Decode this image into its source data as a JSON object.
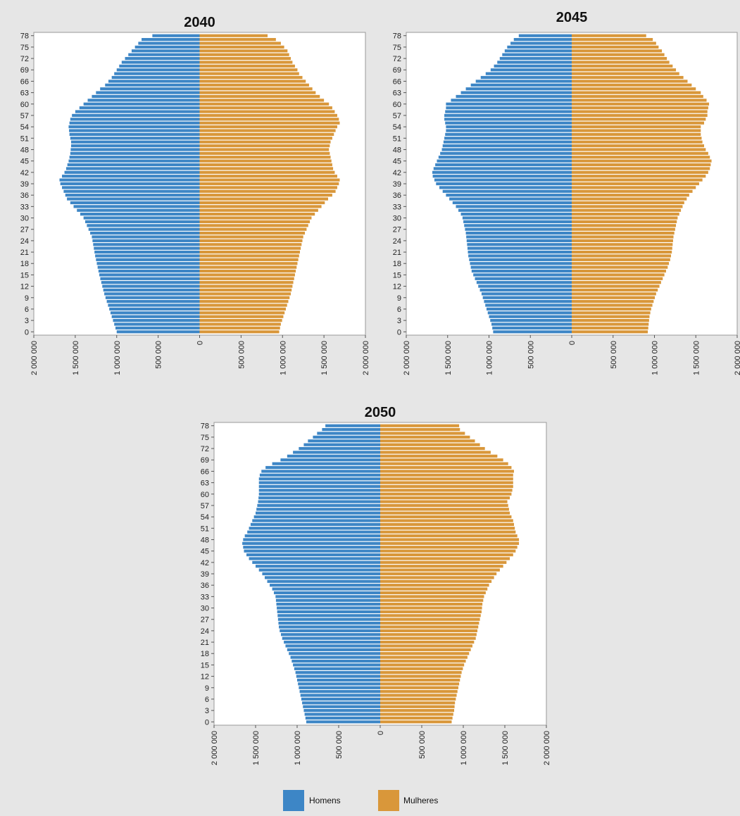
{
  "legend": {
    "male_label": "Homens",
    "female_label": "Mulheres",
    "male_color": "#3d86c6",
    "female_color": "#d9973a"
  },
  "chart_data": [
    {
      "type": "bar",
      "orientation": "horizontal-population-pyramid",
      "title": "2040",
      "age_tick_labels": [
        "0",
        "3",
        "6",
        "9",
        "12",
        "15",
        "18",
        "21",
        "24",
        "27",
        "30",
        "33",
        "36",
        "39",
        "42",
        "45",
        "48",
        "51",
        "54",
        "57",
        "60",
        "63",
        "66",
        "69",
        "72",
        "75",
        "78"
      ],
      "x_tick_labels": [
        "2 000 000",
        "1 500 000",
        "1 000 000",
        "500 000",
        "0",
        "500 000",
        "1 000 000",
        "1 500 000",
        "2 000 000"
      ],
      "xlim": [
        -2000000,
        2000000
      ],
      "ages": [
        0,
        1,
        2,
        3,
        4,
        5,
        6,
        7,
        8,
        9,
        10,
        11,
        12,
        13,
        14,
        15,
        16,
        17,
        18,
        19,
        20,
        21,
        22,
        23,
        24,
        25,
        26,
        27,
        28,
        29,
        30,
        31,
        32,
        33,
        34,
        35,
        36,
        37,
        38,
        39,
        40,
        41,
        42,
        43,
        44,
        45,
        46,
        47,
        48,
        49,
        50,
        51,
        52,
        53,
        54,
        55,
        56,
        57,
        58,
        59,
        60,
        61,
        62,
        63,
        64,
        65,
        66,
        67,
        68,
        69,
        70,
        71,
        72,
        73,
        74,
        75,
        76,
        77,
        78
      ],
      "series": [
        {
          "name": "Homens",
          "values": [
            1000000,
            1015000,
            1030000,
            1045000,
            1060000,
            1075000,
            1090000,
            1105000,
            1120000,
            1135000,
            1150000,
            1162000,
            1174000,
            1186000,
            1198000,
            1210000,
            1220000,
            1230000,
            1240000,
            1250000,
            1260000,
            1268000,
            1276000,
            1284000,
            1292000,
            1300000,
            1320000,
            1340000,
            1360000,
            1380000,
            1400000,
            1440000,
            1480000,
            1520000,
            1560000,
            1600000,
            1620000,
            1640000,
            1660000,
            1680000,
            1690000,
            1660000,
            1630000,
            1610000,
            1595000,
            1580000,
            1570000,
            1560000,
            1555000,
            1550000,
            1550000,
            1560000,
            1570000,
            1575000,
            1580000,
            1570000,
            1560000,
            1540000,
            1500000,
            1450000,
            1400000,
            1350000,
            1300000,
            1250000,
            1200000,
            1140000,
            1100000,
            1060000,
            1030000,
            1000000,
            970000,
            940000,
            900000,
            860000,
            820000,
            780000,
            740000,
            700000,
            570000
          ]
        },
        {
          "name": "Mulheres",
          "values": [
            960000,
            970000,
            980000,
            995000,
            1010000,
            1025000,
            1040000,
            1055000,
            1070000,
            1085000,
            1100000,
            1110000,
            1120000,
            1130000,
            1140000,
            1150000,
            1160000,
            1170000,
            1180000,
            1190000,
            1200000,
            1210000,
            1220000,
            1230000,
            1240000,
            1250000,
            1270000,
            1290000,
            1310000,
            1330000,
            1350000,
            1390000,
            1430000,
            1470000,
            1510000,
            1550000,
            1600000,
            1640000,
            1660000,
            1680000,
            1690000,
            1660000,
            1630000,
            1610000,
            1600000,
            1590000,
            1580000,
            1570000,
            1560000,
            1570000,
            1580000,
            1600000,
            1620000,
            1640000,
            1660000,
            1690000,
            1680000,
            1660000,
            1630000,
            1600000,
            1560000,
            1500000,
            1450000,
            1400000,
            1360000,
            1320000,
            1280000,
            1240000,
            1200000,
            1180000,
            1150000,
            1120000,
            1100000,
            1080000,
            1060000,
            1020000,
            980000,
            920000,
            820000
          ]
        }
      ]
    },
    {
      "type": "bar",
      "orientation": "horizontal-population-pyramid",
      "title": "2045",
      "age_tick_labels": [
        "0",
        "3",
        "6",
        "9",
        "12",
        "15",
        "18",
        "21",
        "24",
        "27",
        "30",
        "33",
        "36",
        "39",
        "42",
        "45",
        "48",
        "51",
        "54",
        "57",
        "60",
        "63",
        "66",
        "69",
        "72",
        "75",
        "78"
      ],
      "x_tick_labels": [
        "2 000 000",
        "1 500 000",
        "1 000 000",
        "500 000",
        "0",
        "500 000",
        "1 000 000",
        "1 500 000",
        "2 000 000"
      ],
      "xlim": [
        -2000000,
        2000000
      ],
      "ages": [
        0,
        1,
        2,
        3,
        4,
        5,
        6,
        7,
        8,
        9,
        10,
        11,
        12,
        13,
        14,
        15,
        16,
        17,
        18,
        19,
        20,
        21,
        22,
        23,
        24,
        25,
        26,
        27,
        28,
        29,
        30,
        31,
        32,
        33,
        34,
        35,
        36,
        37,
        38,
        39,
        40,
        41,
        42,
        43,
        44,
        45,
        46,
        47,
        48,
        49,
        50,
        51,
        52,
        53,
        54,
        55,
        56,
        57,
        58,
        59,
        60,
        61,
        62,
        63,
        64,
        65,
        66,
        67,
        68,
        69,
        70,
        71,
        72,
        73,
        74,
        75,
        76,
        77,
        78
      ],
      "series": [
        {
          "name": "Homens",
          "values": [
            950000,
            960000,
            970000,
            985000,
            1000000,
            1015000,
            1030000,
            1045000,
            1060000,
            1075000,
            1090000,
            1110000,
            1130000,
            1150000,
            1170000,
            1190000,
            1210000,
            1220000,
            1230000,
            1240000,
            1250000,
            1255000,
            1260000,
            1265000,
            1270000,
            1275000,
            1280000,
            1290000,
            1300000,
            1310000,
            1320000,
            1340000,
            1370000,
            1400000,
            1440000,
            1480000,
            1520000,
            1560000,
            1600000,
            1640000,
            1660000,
            1680000,
            1685000,
            1670000,
            1650000,
            1630000,
            1610000,
            1590000,
            1570000,
            1560000,
            1550000,
            1540000,
            1530000,
            1520000,
            1520000,
            1530000,
            1540000,
            1540000,
            1530000,
            1520000,
            1520000,
            1460000,
            1400000,
            1340000,
            1280000,
            1220000,
            1160000,
            1100000,
            1040000,
            980000,
            940000,
            900000,
            870000,
            840000,
            810000,
            780000,
            740000,
            700000,
            640000
          ]
        },
        {
          "name": "Mulheres",
          "values": [
            920000,
            925000,
            930000,
            935000,
            940000,
            950000,
            960000,
            975000,
            990000,
            1005000,
            1020000,
            1040000,
            1060000,
            1080000,
            1100000,
            1120000,
            1140000,
            1160000,
            1175000,
            1190000,
            1200000,
            1210000,
            1215000,
            1220000,
            1225000,
            1230000,
            1240000,
            1250000,
            1260000,
            1270000,
            1280000,
            1300000,
            1320000,
            1340000,
            1360000,
            1390000,
            1420000,
            1460000,
            1500000,
            1540000,
            1580000,
            1620000,
            1650000,
            1670000,
            1680000,
            1690000,
            1670000,
            1650000,
            1620000,
            1600000,
            1580000,
            1570000,
            1560000,
            1560000,
            1560000,
            1600000,
            1620000,
            1640000,
            1640000,
            1650000,
            1660000,
            1630000,
            1590000,
            1560000,
            1500000,
            1450000,
            1400000,
            1350000,
            1300000,
            1260000,
            1220000,
            1180000,
            1150000,
            1120000,
            1090000,
            1050000,
            1020000,
            980000,
            900000
          ]
        }
      ]
    },
    {
      "type": "bar",
      "orientation": "horizontal-population-pyramid",
      "title": "2050",
      "age_tick_labels": [
        "0",
        "3",
        "6",
        "9",
        "12",
        "15",
        "18",
        "21",
        "24",
        "27",
        "30",
        "33",
        "36",
        "39",
        "42",
        "45",
        "48",
        "51",
        "54",
        "57",
        "60",
        "63",
        "66",
        "69",
        "72",
        "75",
        "78"
      ],
      "x_tick_labels": [
        "2 000 000",
        "1 500 000",
        "1 000 000",
        "500 000",
        "0",
        "500 000",
        "1 000 000",
        "1 500 000",
        "2 000 000"
      ],
      "xlim": [
        -2000000,
        2000000
      ],
      "ages": [
        0,
        1,
        2,
        3,
        4,
        5,
        6,
        7,
        8,
        9,
        10,
        11,
        12,
        13,
        14,
        15,
        16,
        17,
        18,
        19,
        20,
        21,
        22,
        23,
        24,
        25,
        26,
        27,
        28,
        29,
        30,
        31,
        32,
        33,
        34,
        35,
        36,
        37,
        38,
        39,
        40,
        41,
        42,
        43,
        44,
        45,
        46,
        47,
        48,
        49,
        50,
        51,
        52,
        53,
        54,
        55,
        56,
        57,
        58,
        59,
        60,
        61,
        62,
        63,
        64,
        65,
        66,
        67,
        68,
        69,
        70,
        71,
        72,
        73,
        74,
        75,
        76,
        77,
        78
      ],
      "series": [
        {
          "name": "Homens",
          "values": [
            890000,
            900000,
            910000,
            920000,
            930000,
            940000,
            950000,
            960000,
            970000,
            980000,
            990000,
            1000000,
            1010000,
            1020000,
            1035000,
            1050000,
            1065000,
            1080000,
            1100000,
            1120000,
            1140000,
            1160000,
            1180000,
            1195000,
            1210000,
            1220000,
            1225000,
            1230000,
            1235000,
            1240000,
            1245000,
            1250000,
            1255000,
            1260000,
            1280000,
            1300000,
            1330000,
            1360000,
            1390000,
            1420000,
            1460000,
            1500000,
            1540000,
            1580000,
            1610000,
            1640000,
            1650000,
            1660000,
            1650000,
            1630000,
            1600000,
            1580000,
            1560000,
            1540000,
            1520000,
            1500000,
            1490000,
            1480000,
            1470000,
            1465000,
            1460000,
            1460000,
            1460000,
            1460000,
            1460000,
            1450000,
            1430000,
            1380000,
            1300000,
            1200000,
            1120000,
            1050000,
            980000,
            920000,
            870000,
            810000,
            760000,
            700000,
            660000
          ]
        },
        {
          "name": "Mulheres",
          "values": [
            860000,
            870000,
            880000,
            890000,
            895000,
            900000,
            910000,
            920000,
            930000,
            940000,
            950000,
            960000,
            970000,
            980000,
            995000,
            1010000,
            1030000,
            1050000,
            1070000,
            1090000,
            1110000,
            1130000,
            1150000,
            1160000,
            1170000,
            1180000,
            1190000,
            1200000,
            1210000,
            1220000,
            1225000,
            1230000,
            1240000,
            1250000,
            1270000,
            1290000,
            1310000,
            1340000,
            1370000,
            1400000,
            1440000,
            1480000,
            1520000,
            1560000,
            1600000,
            1630000,
            1650000,
            1670000,
            1670000,
            1650000,
            1630000,
            1620000,
            1610000,
            1600000,
            1580000,
            1560000,
            1550000,
            1540000,
            1530000,
            1560000,
            1580000,
            1590000,
            1600000,
            1600000,
            1600000,
            1600000,
            1610000,
            1580000,
            1540000,
            1480000,
            1410000,
            1330000,
            1260000,
            1200000,
            1140000,
            1080000,
            1020000,
            960000,
            950000
          ]
        }
      ]
    }
  ]
}
